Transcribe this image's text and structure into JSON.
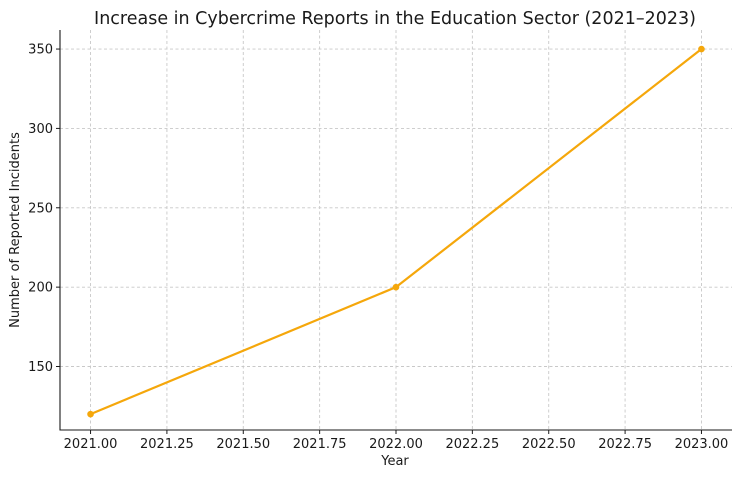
{
  "chart_data": {
    "type": "line",
    "title": "Increase in Cybercrime Reports in the Education Sector (2021–2023)",
    "xlabel": "Year",
    "ylabel": "Number of Reported Incidents",
    "xlim": [
      2020.9,
      2023.1
    ],
    "ylim": [
      110,
      362
    ],
    "xticks": [
      2021.0,
      2021.25,
      2021.5,
      2021.75,
      2022.0,
      2022.25,
      2022.5,
      2022.75,
      2023.0
    ],
    "xtick_labels": [
      "2021.00",
      "2021.25",
      "2021.50",
      "2021.75",
      "2022.00",
      "2022.25",
      "2022.50",
      "2022.75",
      "2023.00"
    ],
    "yticks": [
      150,
      200,
      250,
      300,
      350
    ],
    "ytick_labels": [
      "150",
      "200",
      "250",
      "300",
      "350"
    ],
    "grid": true,
    "series": [
      {
        "x": [
          2021,
          2022,
          2023
        ],
        "y": [
          120,
          200,
          350
        ],
        "color": "#f5a70b",
        "marker": "circle"
      }
    ]
  }
}
